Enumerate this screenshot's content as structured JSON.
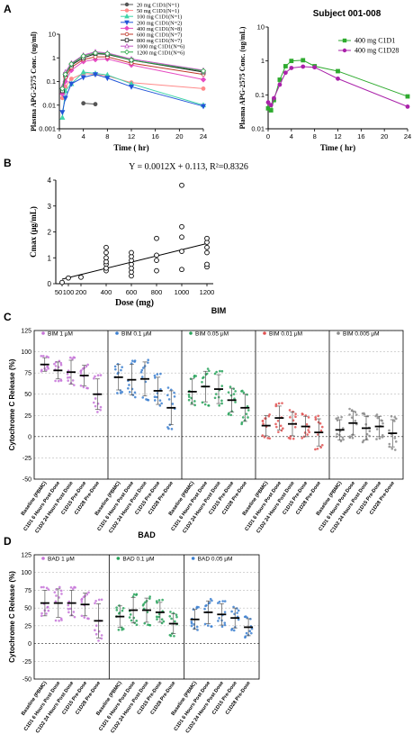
{
  "panels": {
    "A": "A",
    "B": "B",
    "C": "C",
    "D": "D"
  },
  "colors": {
    "c20": "#555555",
    "c50": "#ff8a8a",
    "c100": "#3fd4a8",
    "c200": "#2255d8",
    "c400": "#e64bc2",
    "c600": "#c0392b",
    "c800": "#222222",
    "c1000": "#c455c4",
    "c1200": "#2ea84a",
    "C1D1": "#2eaa2e",
    "C1D28": "#aa22aa",
    "bim1": "#c673d8",
    "bim01": "#3b7fd0",
    "bim005": "#27a35a",
    "bim001": "#e05050",
    "bim0005": "#8a8a8a"
  },
  "chart_data": [
    {
      "id": "A-left",
      "type": "line",
      "xlabel": "Time ( hr)",
      "ylabel": "Plasma APG-2575 Conc. (ug/ml)",
      "log_y": true,
      "xlim": [
        0,
        24
      ],
      "ylim": [
        0.001,
        10
      ],
      "xticks": [
        0,
        4,
        8,
        12,
        16,
        20,
        24
      ],
      "yticks": [
        {
          "v": 0.001,
          "l": "0.001"
        },
        {
          "v": 0.01,
          "l": "0.01"
        },
        {
          "v": 0.1,
          "l": "0.1"
        },
        {
          "v": 1,
          "l": "1"
        },
        {
          "v": 10,
          "l": "10"
        }
      ],
      "series": [
        {
          "name": "20 mg C1D1(N=1)",
          "color": "#555555",
          "marker": "circle",
          "x": [
            4,
            6
          ],
          "y": [
            0.012,
            0.011
          ]
        },
        {
          "name": "50 mg C1D1(N=1)",
          "color": "#ff8a8a",
          "marker": "circle",
          "x": [
            0.5,
            1,
            2,
            4,
            6,
            8,
            12,
            24
          ],
          "y": [
            0.02,
            0.06,
            0.13,
            0.22,
            0.2,
            0.17,
            0.09,
            0.05
          ]
        },
        {
          "name": "100 mg C1D1(N=1)",
          "color": "#3fd4a8",
          "marker": "triangle",
          "x": [
            0.5,
            1,
            2,
            4,
            6,
            8,
            12,
            24
          ],
          "y": [
            0.003,
            0.04,
            0.08,
            0.25,
            0.22,
            0.19,
            0.08,
            0.01
          ]
        },
        {
          "name": "200 mg C1D1(N=2)",
          "color": "#2255d8",
          "marker": "triangle-down",
          "x": [
            0.5,
            1,
            2,
            4,
            6,
            8,
            12,
            24
          ],
          "y": [
            0.005,
            0.02,
            0.08,
            0.15,
            0.2,
            0.14,
            0.06,
            0.009
          ]
        },
        {
          "name": "400 mg C1D1(N=8)",
          "color": "#e64bc2",
          "marker": "diamond",
          "x": [
            0.5,
            1,
            2,
            4,
            6,
            8,
            12,
            24
          ],
          "y": [
            0.03,
            0.1,
            0.3,
            0.7,
            0.85,
            0.9,
            0.5,
            0.12
          ]
        },
        {
          "name": "600 mg C1D1(N=7)",
          "color": "#c0392b",
          "marker": "circle-open",
          "x": [
            0.5,
            1,
            2,
            4,
            6,
            8,
            12,
            24
          ],
          "y": [
            0.05,
            0.15,
            0.4,
            0.85,
            1.1,
            1.1,
            0.6,
            0.2
          ]
        },
        {
          "name": "800 mg C1D1(N=7)",
          "color": "#222222",
          "marker": "square-open",
          "x": [
            0.5,
            1,
            2,
            4,
            6,
            8,
            12,
            24
          ],
          "y": [
            0.04,
            0.2,
            0.5,
            1.0,
            1.5,
            1.4,
            0.8,
            0.25
          ]
        },
        {
          "name": "1000 mg C1D1(N=6)",
          "color": "#c455c4",
          "marker": "triangle-open",
          "x": [
            0.5,
            1,
            2,
            4,
            6,
            8,
            12,
            24
          ],
          "y": [
            0.06,
            0.25,
            0.6,
            1.3,
            1.8,
            1.6,
            0.9,
            0.3
          ]
        },
        {
          "name": "1200 mg C1D1(N=6)",
          "color": "#2ea84a",
          "marker": "diamond-open",
          "x": [
            0.5,
            1,
            2,
            4,
            6,
            8,
            12,
            24
          ],
          "y": [
            0.05,
            0.2,
            0.55,
            1.2,
            1.6,
            1.5,
            0.8,
            0.28
          ]
        }
      ]
    },
    {
      "id": "A-right",
      "type": "line",
      "title": "Subject 001-008",
      "xlabel": "Time ( hr)",
      "ylabel": "Plasma APG-2575 Conc. (ug/mL)",
      "log_y": true,
      "xlim": [
        0,
        24
      ],
      "ylim": [
        0.01,
        10
      ],
      "xticks": [
        0,
        4,
        8,
        12,
        16,
        20,
        24
      ],
      "yticks": [
        {
          "v": 0.01,
          "l": "0.01"
        },
        {
          "v": 0.1,
          "l": "0.1"
        },
        {
          "v": 1,
          "l": "1"
        },
        {
          "v": 10,
          "l": "10"
        }
      ],
      "series": [
        {
          "name": "400 mg C1D1",
          "color": "#2eaa2e",
          "marker": "square",
          "x": [
            0,
            0.5,
            1,
            2,
            3,
            4,
            6,
            8,
            12,
            24
          ],
          "y": [
            0.04,
            0.035,
            0.07,
            0.28,
            0.7,
            1.0,
            1.05,
            0.7,
            0.5,
            0.09
          ]
        },
        {
          "name": "400 mg C1D28",
          "color": "#aa22aa",
          "marker": "circle",
          "x": [
            0,
            0.5,
            1,
            2,
            3,
            4,
            6,
            8,
            12,
            24
          ],
          "y": [
            0.06,
            0.05,
            0.08,
            0.2,
            0.45,
            0.62,
            0.68,
            0.65,
            0.3,
            0.045
          ]
        }
      ]
    },
    {
      "id": "B",
      "type": "scatter",
      "annotation": "Y = 0.0012X + 0.113, R²=0.8326",
      "xlabel": "Dose (mg)",
      "ylabel": "Cmax (μg/mL)",
      "xlim": [
        0,
        1250
      ],
      "ylim": [
        0,
        4
      ],
      "xtick_labels": [
        "50",
        "100",
        "200",
        "400",
        "600",
        "800",
        "1000",
        "1200"
      ],
      "xtick_values": [
        50,
        100,
        200,
        400,
        600,
        800,
        1000,
        1200
      ],
      "fit": {
        "slope": 0.0012,
        "intercept": 0.113
      },
      "points": [
        {
          "x": 50,
          "y": 0.05
        },
        {
          "x": 100,
          "y": 0.22
        },
        {
          "x": 200,
          "y": 0.25
        },
        {
          "x": 400,
          "y": 0.5
        },
        {
          "x": 400,
          "y": 0.75
        },
        {
          "x": 400,
          "y": 0.85
        },
        {
          "x": 400,
          "y": 1.0
        },
        {
          "x": 400,
          "y": 1.2
        },
        {
          "x": 400,
          "y": 1.4
        },
        {
          "x": 400,
          "y": 0.6
        },
        {
          "x": 600,
          "y": 0.3
        },
        {
          "x": 600,
          "y": 0.45
        },
        {
          "x": 600,
          "y": 0.6
        },
        {
          "x": 600,
          "y": 0.75
        },
        {
          "x": 600,
          "y": 0.9
        },
        {
          "x": 600,
          "y": 1.05
        },
        {
          "x": 600,
          "y": 1.2
        },
        {
          "x": 800,
          "y": 0.5
        },
        {
          "x": 800,
          "y": 0.9
        },
        {
          "x": 800,
          "y": 1.1
        },
        {
          "x": 800,
          "y": 1.75
        },
        {
          "x": 1000,
          "y": 0.55
        },
        {
          "x": 1000,
          "y": 1.25
        },
        {
          "x": 1000,
          "y": 1.8
        },
        {
          "x": 1000,
          "y": 2.2
        },
        {
          "x": 1000,
          "y": 3.8
        },
        {
          "x": 1200,
          "y": 0.65
        },
        {
          "x": 1200,
          "y": 0.75
        },
        {
          "x": 1200,
          "y": 1.2
        },
        {
          "x": 1200,
          "y": 1.4
        },
        {
          "x": 1200,
          "y": 1.6
        },
        {
          "x": 1200,
          "y": 1.75
        }
      ]
    },
    {
      "id": "C",
      "type": "scatter",
      "title": "BIM",
      "ylabel": "Cytochrome C Release (%)",
      "ylim": [
        -50,
        125
      ],
      "yticks": [
        -50,
        -25,
        0,
        25,
        50,
        75,
        100,
        125
      ],
      "categories": [
        "Baseline (PBMC)",
        "C1D1 6 Hours Post Dose",
        "C1D2 24 Hours Post Dose",
        "C1D15 Pre-Dose",
        "C1D28 Pre-Dose"
      ],
      "groups": [
        {
          "name": "BIM 1 μM",
          "color": "#c673d8",
          "means": [
            85,
            78,
            76,
            72,
            50
          ],
          "sds": [
            8,
            10,
            14,
            12,
            18
          ]
        },
        {
          "name": "BIM 0.1 μM",
          "color": "#3b7fd0",
          "means": [
            70,
            67,
            68,
            54,
            34
          ],
          "sds": [
            15,
            18,
            20,
            16,
            20
          ]
        },
        {
          "name": "BIM 0.05 μM",
          "color": "#27a35a",
          "means": [
            53,
            59,
            56,
            43,
            34
          ],
          "sds": [
            15,
            18,
            17,
            14,
            16
          ]
        },
        {
          "name": "BIM 0.01 μM",
          "color": "#e05050",
          "means": [
            13,
            22,
            15,
            12,
            5
          ],
          "sds": [
            12,
            14,
            14,
            12,
            16
          ]
        },
        {
          "name": "BIM 0.005 μM",
          "color": "#8a8a8a",
          "means": [
            8,
            16,
            10,
            12,
            4
          ],
          "sds": [
            12,
            14,
            14,
            12,
            16
          ]
        }
      ]
    },
    {
      "id": "D",
      "type": "scatter",
      "title": "BAD",
      "ylabel": "Cytochrome C Release (%)",
      "ylim": [
        -50,
        125
      ],
      "yticks": [
        -50,
        -25,
        0,
        25,
        50,
        75,
        100,
        125
      ],
      "categories": [
        "Baseline (PBMC)",
        "C1D1 6 Hours Post Dose",
        "C1D2 24 Hours Post Dose",
        "C1D15 Pre-Dose",
        "C1D28 Pre-Dose"
      ],
      "groups": [
        {
          "name": "BAD 1 μM",
          "color": "#c673d8",
          "means": [
            57,
            57,
            57,
            55,
            32
          ],
          "sds": [
            18,
            20,
            18,
            16,
            24
          ]
        },
        {
          "name": "BAD 0.1 μM",
          "color": "#27a35a",
          "means": [
            38,
            47,
            47,
            44,
            28
          ],
          "sds": [
            15,
            18,
            17,
            14,
            14
          ]
        },
        {
          "name": "BAD 0.05 μM",
          "color": "#3b7fd0",
          "means": [
            34,
            44,
            41,
            36,
            23
          ],
          "sds": [
            14,
            16,
            15,
            14,
            12
          ]
        }
      ]
    }
  ]
}
